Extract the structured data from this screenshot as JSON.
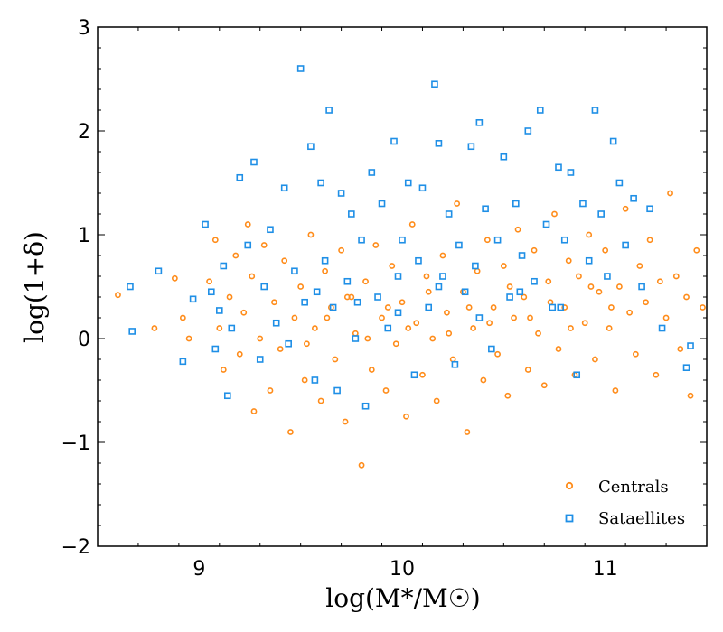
{
  "chart_data": {
    "type": "scatter",
    "title": "",
    "xlabel": "log(M*/M☉)",
    "ylabel": "log(1+δ)",
    "xlim": [
      8.5,
      11.5
    ],
    "ylim": [
      -2,
      3
    ],
    "xticks": [
      9,
      10,
      11
    ],
    "xtick_labels": [
      "9",
      "10",
      "11"
    ],
    "yticks": [
      -2,
      -1,
      0,
      1,
      2,
      3
    ],
    "ytick_labels": [
      "−2",
      "−1",
      "0",
      "1",
      "2",
      "3"
    ],
    "legend_position": "bottom-right",
    "series": [
      {
        "name": "Centrals",
        "color": "#ff8c1a",
        "marker": "circle",
        "points": [
          [
            8.6,
            0.42
          ],
          [
            8.78,
            0.1
          ],
          [
            8.88,
            0.58
          ],
          [
            8.92,
            0.2
          ],
          [
            8.95,
            0.0
          ],
          [
            9.05,
            0.55
          ],
          [
            9.08,
            0.95
          ],
          [
            9.1,
            0.1
          ],
          [
            9.12,
            -0.3
          ],
          [
            9.15,
            0.4
          ],
          [
            9.18,
            0.8
          ],
          [
            9.2,
            -0.15
          ],
          [
            9.22,
            0.25
          ],
          [
            9.24,
            1.1
          ],
          [
            9.26,
            0.6
          ],
          [
            9.27,
            -0.7
          ],
          [
            9.3,
            0.0
          ],
          [
            9.32,
            0.9
          ],
          [
            9.35,
            -0.5
          ],
          [
            9.37,
            0.35
          ],
          [
            9.4,
            -0.1
          ],
          [
            9.42,
            0.75
          ],
          [
            9.45,
            -0.9
          ],
          [
            9.47,
            0.2
          ],
          [
            9.5,
            0.5
          ],
          [
            9.52,
            -0.4
          ],
          [
            9.55,
            1.0
          ],
          [
            9.57,
            0.1
          ],
          [
            9.6,
            -0.6
          ],
          [
            9.62,
            0.65
          ],
          [
            9.65,
            0.3
          ],
          [
            9.67,
            -0.2
          ],
          [
            9.7,
            0.85
          ],
          [
            9.72,
            -0.8
          ],
          [
            9.75,
            0.4
          ],
          [
            9.77,
            0.05
          ],
          [
            9.8,
            -1.22
          ],
          [
            9.82,
            0.55
          ],
          [
            9.85,
            -0.3
          ],
          [
            9.87,
            0.9
          ],
          [
            9.9,
            0.2
          ],
          [
            9.92,
            -0.5
          ],
          [
            9.95,
            0.7
          ],
          [
            9.97,
            -0.05
          ],
          [
            10.0,
            0.35
          ],
          [
            10.02,
            -0.75
          ],
          [
            10.05,
            1.1
          ],
          [
            10.07,
            0.15
          ],
          [
            10.1,
            -0.35
          ],
          [
            10.12,
            0.6
          ],
          [
            10.15,
            0.0
          ],
          [
            10.17,
            -0.6
          ],
          [
            10.2,
            0.8
          ],
          [
            10.22,
            0.25
          ],
          [
            10.25,
            -0.2
          ],
          [
            10.27,
            1.3
          ],
          [
            10.3,
            0.45
          ],
          [
            10.32,
            -0.9
          ],
          [
            10.35,
            0.1
          ],
          [
            10.37,
            0.65
          ],
          [
            10.4,
            -0.4
          ],
          [
            10.42,
            0.95
          ],
          [
            10.45,
            0.3
          ],
          [
            10.47,
            -0.15
          ],
          [
            10.5,
            0.7
          ],
          [
            10.52,
            -0.55
          ],
          [
            10.55,
            0.2
          ],
          [
            10.57,
            1.05
          ],
          [
            10.6,
            0.4
          ],
          [
            10.62,
            -0.3
          ],
          [
            10.65,
            0.85
          ],
          [
            10.67,
            0.05
          ],
          [
            10.7,
            -0.45
          ],
          [
            10.72,
            0.55
          ],
          [
            10.75,
            1.2
          ],
          [
            10.77,
            -0.1
          ],
          [
            10.8,
            0.3
          ],
          [
            10.82,
            0.75
          ],
          [
            10.85,
            -0.35
          ],
          [
            10.87,
            0.6
          ],
          [
            10.9,
            0.15
          ],
          [
            10.92,
            1.0
          ],
          [
            10.95,
            -0.2
          ],
          [
            10.97,
            0.45
          ],
          [
            11.0,
            0.85
          ],
          [
            11.02,
            0.1
          ],
          [
            11.05,
            -0.5
          ],
          [
            11.07,
            0.5
          ],
          [
            11.1,
            1.25
          ],
          [
            11.12,
            0.25
          ],
          [
            11.15,
            -0.15
          ],
          [
            11.17,
            0.7
          ],
          [
            11.2,
            0.35
          ],
          [
            11.22,
            0.95
          ],
          [
            11.25,
            -0.35
          ],
          [
            11.27,
            0.55
          ],
          [
            11.3,
            0.2
          ],
          [
            11.32,
            1.4
          ],
          [
            11.35,
            0.6
          ],
          [
            11.37,
            -0.1
          ],
          [
            11.4,
            0.4
          ],
          [
            11.42,
            -0.55
          ],
          [
            11.45,
            0.85
          ],
          [
            11.48,
            0.3
          ],
          [
            9.53,
            -0.05
          ],
          [
            9.63,
            0.2
          ],
          [
            9.73,
            0.4
          ],
          [
            9.83,
            0.0
          ],
          [
            9.93,
            0.3
          ],
          [
            10.03,
            0.1
          ],
          [
            10.13,
            0.45
          ],
          [
            10.23,
            0.05
          ],
          [
            10.33,
            0.3
          ],
          [
            10.43,
            0.15
          ],
          [
            10.53,
            0.5
          ],
          [
            10.63,
            0.2
          ],
          [
            10.73,
            0.35
          ],
          [
            10.83,
            0.1
          ],
          [
            10.93,
            0.5
          ],
          [
            11.03,
            0.3
          ]
        ]
      },
      {
        "name": "Sataellites",
        "color": "#1f8fe6",
        "marker": "square",
        "points": [
          [
            8.66,
            0.5
          ],
          [
            8.67,
            0.07
          ],
          [
            8.8,
            0.65
          ],
          [
            8.92,
            -0.22
          ],
          [
            8.97,
            0.38
          ],
          [
            9.03,
            1.1
          ],
          [
            9.06,
            0.45
          ],
          [
            9.08,
            -0.1
          ],
          [
            9.1,
            0.27
          ],
          [
            9.12,
            0.7
          ],
          [
            9.14,
            -0.55
          ],
          [
            9.16,
            0.1
          ],
          [
            9.2,
            1.55
          ],
          [
            9.24,
            0.9
          ],
          [
            9.27,
            1.7
          ],
          [
            9.3,
            -0.2
          ],
          [
            9.32,
            0.5
          ],
          [
            9.35,
            1.05
          ],
          [
            9.38,
            0.15
          ],
          [
            9.42,
            1.45
          ],
          [
            9.44,
            -0.05
          ],
          [
            9.47,
            0.65
          ],
          [
            9.5,
            2.6
          ],
          [
            9.52,
            0.35
          ],
          [
            9.55,
            1.85
          ],
          [
            9.57,
            -0.4
          ],
          [
            9.6,
            1.5
          ],
          [
            9.62,
            0.75
          ],
          [
            9.64,
            2.2
          ],
          [
            9.66,
            0.3
          ],
          [
            9.68,
            -0.5
          ],
          [
            9.7,
            1.4
          ],
          [
            9.73,
            0.55
          ],
          [
            9.75,
            1.2
          ],
          [
            9.77,
            0.0
          ],
          [
            9.8,
            0.95
          ],
          [
            9.82,
            -0.65
          ],
          [
            9.85,
            1.6
          ],
          [
            9.88,
            0.4
          ],
          [
            9.9,
            1.3
          ],
          [
            9.93,
            0.1
          ],
          [
            9.96,
            1.9
          ],
          [
            9.98,
            0.6
          ],
          [
            10.0,
            0.95
          ],
          [
            10.03,
            1.5
          ],
          [
            10.06,
            -0.35
          ],
          [
            10.08,
            0.75
          ],
          [
            10.1,
            1.45
          ],
          [
            10.13,
            0.3
          ],
          [
            10.16,
            2.45
          ],
          [
            10.18,
            1.88
          ],
          [
            10.2,
            0.6
          ],
          [
            10.23,
            1.2
          ],
          [
            10.26,
            -0.25
          ],
          [
            10.28,
            0.9
          ],
          [
            10.31,
            0.45
          ],
          [
            10.34,
            1.85
          ],
          [
            10.36,
            0.7
          ],
          [
            10.38,
            2.08
          ],
          [
            10.41,
            1.25
          ],
          [
            10.44,
            -0.1
          ],
          [
            10.47,
            0.95
          ],
          [
            10.5,
            1.75
          ],
          [
            10.53,
            0.4
          ],
          [
            10.56,
            1.3
          ],
          [
            10.59,
            0.8
          ],
          [
            10.62,
            2.0
          ],
          [
            10.65,
            0.55
          ],
          [
            10.68,
            2.2
          ],
          [
            10.71,
            1.1
          ],
          [
            10.74,
            0.3
          ],
          [
            10.77,
            1.65
          ],
          [
            10.8,
            0.95
          ],
          [
            10.83,
            1.6
          ],
          [
            10.86,
            -0.35
          ],
          [
            10.89,
            1.3
          ],
          [
            10.92,
            0.75
          ],
          [
            10.95,
            2.2
          ],
          [
            10.98,
            1.2
          ],
          [
            11.01,
            0.6
          ],
          [
            11.04,
            1.9
          ],
          [
            11.07,
            1.5
          ],
          [
            11.1,
            0.9
          ],
          [
            11.14,
            1.35
          ],
          [
            11.18,
            0.5
          ],
          [
            11.22,
            1.25
          ],
          [
            11.28,
            0.1
          ],
          [
            11.4,
            -0.28
          ],
          [
            11.42,
            -0.07
          ],
          [
            9.58,
            0.45
          ],
          [
            9.78,
            0.35
          ],
          [
            9.98,
            0.25
          ],
          [
            10.18,
            0.5
          ],
          [
            10.38,
            0.2
          ],
          [
            10.58,
            0.45
          ],
          [
            10.78,
            0.3
          ]
        ]
      }
    ]
  }
}
